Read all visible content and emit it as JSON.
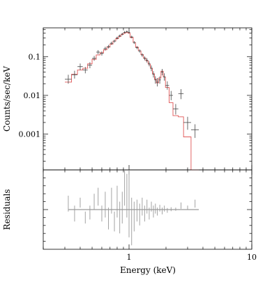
{
  "chart_data": [
    {
      "type": "line",
      "panel": "spectrum",
      "xlabel": "",
      "ylabel": "Counts/sec/keV",
      "x_scale": "log",
      "y_scale": "log",
      "xlim": [
        0.2,
        10
      ],
      "ylim": [
        0.00012,
        0.55
      ],
      "y_ticks": [
        {
          "value": 0.1,
          "label": "0.1"
        },
        {
          "value": 0.01,
          "label": "0.01"
        },
        {
          "value": 0.001,
          "label": "0.001"
        }
      ],
      "model_color": "#e05555",
      "data_color": "#444444",
      "data_points": [
        {
          "x": 0.32,
          "y": 0.026,
          "ylo": 0.02,
          "yhi": 0.034,
          "xlo": 0.3,
          "xhi": 0.34
        },
        {
          "x": 0.36,
          "y": 0.034,
          "ylo": 0.027,
          "yhi": 0.043,
          "xlo": 0.34,
          "xhi": 0.38
        },
        {
          "x": 0.4,
          "y": 0.055,
          "ylo": 0.045,
          "yhi": 0.066,
          "xlo": 0.38,
          "xhi": 0.42
        },
        {
          "x": 0.44,
          "y": 0.045,
          "ylo": 0.037,
          "yhi": 0.054,
          "xlo": 0.42,
          "xhi": 0.46
        },
        {
          "x": 0.48,
          "y": 0.06,
          "ylo": 0.05,
          "yhi": 0.072,
          "xlo": 0.46,
          "xhi": 0.5
        },
        {
          "x": 0.52,
          "y": 0.09,
          "ylo": 0.078,
          "yhi": 0.104,
          "xlo": 0.5,
          "xhi": 0.54
        },
        {
          "x": 0.56,
          "y": 0.13,
          "ylo": 0.115,
          "yhi": 0.147,
          "xlo": 0.54,
          "xhi": 0.58
        },
        {
          "x": 0.6,
          "y": 0.12,
          "ylo": 0.106,
          "yhi": 0.136,
          "xlo": 0.58,
          "xhi": 0.62
        },
        {
          "x": 0.64,
          "y": 0.16,
          "ylo": 0.143,
          "yhi": 0.178,
          "xlo": 0.62,
          "xhi": 0.66
        },
        {
          "x": 0.68,
          "y": 0.18,
          "ylo": 0.162,
          "yhi": 0.2,
          "xlo": 0.66,
          "xhi": 0.7
        },
        {
          "x": 0.72,
          "y": 0.22,
          "ylo": 0.2,
          "yhi": 0.242,
          "xlo": 0.7,
          "xhi": 0.74
        },
        {
          "x": 0.76,
          "y": 0.25,
          "ylo": 0.228,
          "yhi": 0.274,
          "xlo": 0.74,
          "xhi": 0.78
        },
        {
          "x": 0.8,
          "y": 0.3,
          "ylo": 0.276,
          "yhi": 0.326,
          "xlo": 0.78,
          "xhi": 0.82
        },
        {
          "x": 0.84,
          "y": 0.34,
          "ylo": 0.314,
          "yhi": 0.368,
          "xlo": 0.82,
          "xhi": 0.86
        },
        {
          "x": 0.88,
          "y": 0.38,
          "ylo": 0.352,
          "yhi": 0.41,
          "xlo": 0.86,
          "xhi": 0.9
        },
        {
          "x": 0.92,
          "y": 0.42,
          "ylo": 0.39,
          "yhi": 0.452,
          "xlo": 0.9,
          "xhi": 0.94
        },
        {
          "x": 0.96,
          "y": 0.44,
          "ylo": 0.41,
          "yhi": 0.472,
          "xlo": 0.94,
          "xhi": 0.98
        },
        {
          "x": 1.0,
          "y": 0.42,
          "ylo": 0.39,
          "yhi": 0.452,
          "xlo": 0.98,
          "xhi": 1.02
        },
        {
          "x": 1.05,
          "y": 0.32,
          "ylo": 0.296,
          "yhi": 0.346,
          "xlo": 1.02,
          "xhi": 1.08
        },
        {
          "x": 1.1,
          "y": 0.23,
          "ylo": 0.211,
          "yhi": 0.25,
          "xlo": 1.08,
          "xhi": 1.13
        },
        {
          "x": 1.16,
          "y": 0.17,
          "ylo": 0.155,
          "yhi": 0.186,
          "xlo": 1.13,
          "xhi": 1.19
        },
        {
          "x": 1.22,
          "y": 0.14,
          "ylo": 0.127,
          "yhi": 0.154,
          "xlo": 1.19,
          "xhi": 1.25
        },
        {
          "x": 1.28,
          "y": 0.11,
          "ylo": 0.099,
          "yhi": 0.122,
          "xlo": 1.25,
          "xhi": 1.31
        },
        {
          "x": 1.34,
          "y": 0.09,
          "ylo": 0.08,
          "yhi": 0.101,
          "xlo": 1.31,
          "xhi": 1.37
        },
        {
          "x": 1.4,
          "y": 0.08,
          "ylo": 0.07,
          "yhi": 0.091,
          "xlo": 1.37,
          "xhi": 1.43
        },
        {
          "x": 1.46,
          "y": 0.065,
          "ylo": 0.056,
          "yhi": 0.075,
          "xlo": 1.43,
          "xhi": 1.49
        },
        {
          "x": 1.52,
          "y": 0.05,
          "ylo": 0.042,
          "yhi": 0.059,
          "xlo": 1.49,
          "xhi": 1.55
        },
        {
          "x": 1.58,
          "y": 0.035,
          "ylo": 0.029,
          "yhi": 0.042,
          "xlo": 1.55,
          "xhi": 1.61
        },
        {
          "x": 1.64,
          "y": 0.025,
          "ylo": 0.02,
          "yhi": 0.031,
          "xlo": 1.61,
          "xhi": 1.67
        },
        {
          "x": 1.7,
          "y": 0.022,
          "ylo": 0.017,
          "yhi": 0.028,
          "xlo": 1.67,
          "xhi": 1.74
        },
        {
          "x": 1.78,
          "y": 0.025,
          "ylo": 0.02,
          "yhi": 0.031,
          "xlo": 1.74,
          "xhi": 1.82
        },
        {
          "x": 1.86,
          "y": 0.04,
          "ylo": 0.033,
          "yhi": 0.048,
          "xlo": 1.82,
          "xhi": 1.9
        },
        {
          "x": 1.94,
          "y": 0.03,
          "ylo": 0.024,
          "yhi": 0.037,
          "xlo": 1.9,
          "xhi": 1.98
        },
        {
          "x": 2.05,
          "y": 0.018,
          "ylo": 0.014,
          "yhi": 0.023,
          "xlo": 1.98,
          "xhi": 2.12
        },
        {
          "x": 2.2,
          "y": 0.01,
          "ylo": 0.0075,
          "yhi": 0.013,
          "xlo": 2.12,
          "xhi": 2.28
        },
        {
          "x": 2.4,
          "y": 0.0045,
          "ylo": 0.0032,
          "yhi": 0.006,
          "xlo": 2.28,
          "xhi": 2.52
        },
        {
          "x": 2.65,
          "y": 0.011,
          "ylo": 0.008,
          "yhi": 0.0145,
          "xlo": 2.52,
          "xhi": 2.78
        },
        {
          "x": 3.0,
          "y": 0.002,
          "ylo": 0.0013,
          "yhi": 0.0028,
          "xlo": 2.78,
          "xhi": 3.2
        },
        {
          "x": 3.45,
          "y": 0.0013,
          "ylo": 0.0008,
          "yhi": 0.0018,
          "xlo": 3.2,
          "xhi": 3.7
        }
      ],
      "model_steps": [
        {
          "x0": 0.3,
          "x1": 0.34,
          "y": 0.022
        },
        {
          "x0": 0.34,
          "x1": 0.38,
          "y": 0.035
        },
        {
          "x0": 0.38,
          "x1": 0.42,
          "y": 0.045
        },
        {
          "x0": 0.42,
          "x1": 0.46,
          "y": 0.05
        },
        {
          "x0": 0.46,
          "x1": 0.5,
          "y": 0.065
        },
        {
          "x0": 0.5,
          "x1": 0.54,
          "y": 0.085
        },
        {
          "x0": 0.54,
          "x1": 0.58,
          "y": 0.11
        },
        {
          "x0": 0.58,
          "x1": 0.62,
          "y": 0.125
        },
        {
          "x0": 0.62,
          "x1": 0.66,
          "y": 0.15
        },
        {
          "x0": 0.66,
          "x1": 0.7,
          "y": 0.175
        },
        {
          "x0": 0.7,
          "x1": 0.74,
          "y": 0.21
        },
        {
          "x0": 0.74,
          "x1": 0.78,
          "y": 0.25
        },
        {
          "x0": 0.78,
          "x1": 0.82,
          "y": 0.29
        },
        {
          "x0": 0.82,
          "x1": 0.86,
          "y": 0.33
        },
        {
          "x0": 0.86,
          "x1": 0.9,
          "y": 0.37
        },
        {
          "x0": 0.9,
          "x1": 0.94,
          "y": 0.4
        },
        {
          "x0": 0.94,
          "x1": 0.98,
          "y": 0.42
        },
        {
          "x0": 0.98,
          "x1": 1.02,
          "y": 0.4
        },
        {
          "x0": 1.02,
          "x1": 1.08,
          "y": 0.31
        },
        {
          "x0": 1.08,
          "x1": 1.13,
          "y": 0.23
        },
        {
          "x0": 1.13,
          "x1": 1.19,
          "y": 0.175
        },
        {
          "x0": 1.19,
          "x1": 1.25,
          "y": 0.14
        },
        {
          "x0": 1.25,
          "x1": 1.31,
          "y": 0.112
        },
        {
          "x0": 1.31,
          "x1": 1.37,
          "y": 0.092
        },
        {
          "x0": 1.37,
          "x1": 1.43,
          "y": 0.078
        },
        {
          "x0": 1.43,
          "x1": 1.49,
          "y": 0.064
        },
        {
          "x0": 1.49,
          "x1": 1.55,
          "y": 0.05
        },
        {
          "x0": 1.55,
          "x1": 1.61,
          "y": 0.036
        },
        {
          "x0": 1.61,
          "x1": 1.67,
          "y": 0.026
        },
        {
          "x0": 1.67,
          "x1": 1.74,
          "y": 0.021
        },
        {
          "x0": 1.74,
          "x1": 1.82,
          "y": 0.028
        },
        {
          "x0": 1.82,
          "x1": 1.9,
          "y": 0.042
        },
        {
          "x0": 1.9,
          "x1": 1.98,
          "y": 0.03
        },
        {
          "x0": 1.98,
          "x1": 2.12,
          "y": 0.016
        },
        {
          "x0": 2.12,
          "x1": 2.28,
          "y": 0.0065
        },
        {
          "x0": 2.28,
          "x1": 2.52,
          "y": 0.003
        },
        {
          "x0": 2.52,
          "x1": 2.78,
          "y": 0.0028
        },
        {
          "x0": 2.78,
          "x1": 3.2,
          "y": 0.00085
        },
        {
          "x0": 3.2,
          "x1": 3.7,
          "y": 0.00012
        }
      ]
    },
    {
      "type": "scatter",
      "panel": "residuals",
      "xlabel": "Energy (keV)",
      "ylabel": "Residuals",
      "x_scale": "log",
      "xlim": [
        0.2,
        10
      ],
      "ylim": [
        -1.0,
        1.0
      ],
      "x_ticks": [
        {
          "value": 1,
          "label": "1"
        },
        {
          "value": 10,
          "label": "10"
        }
      ],
      "zero_line": {
        "x0": 0.32,
        "x1": 3.7,
        "y": 0
      },
      "residual_color": "#999999",
      "residuals": [
        {
          "x": 0.32,
          "ylo": -0.05,
          "yhi": 0.35
        },
        {
          "x": 0.36,
          "ylo": -0.3,
          "yhi": 0.1
        },
        {
          "x": 0.4,
          "ylo": 0.05,
          "yhi": 0.3
        },
        {
          "x": 0.44,
          "ylo": -0.35,
          "yhi": -0.05
        },
        {
          "x": 0.48,
          "ylo": -0.25,
          "yhi": 0.1
        },
        {
          "x": 0.52,
          "ylo": 0.0,
          "yhi": 0.4
        },
        {
          "x": 0.56,
          "ylo": 0.1,
          "yhi": 0.55
        },
        {
          "x": 0.6,
          "ylo": -0.3,
          "yhi": 0.1
        },
        {
          "x": 0.64,
          "ylo": -0.2,
          "yhi": 0.45
        },
        {
          "x": 0.68,
          "ylo": -0.5,
          "yhi": 0.05
        },
        {
          "x": 0.72,
          "ylo": -0.1,
          "yhi": 0.55
        },
        {
          "x": 0.76,
          "ylo": -0.55,
          "yhi": -0.05
        },
        {
          "x": 0.8,
          "ylo": -0.2,
          "yhi": 0.6
        },
        {
          "x": 0.84,
          "ylo": -0.6,
          "yhi": 0.2
        },
        {
          "x": 0.88,
          "ylo": -0.35,
          "yhi": 0.45
        },
        {
          "x": 0.92,
          "ylo": 0.1,
          "yhi": 1.0
        },
        {
          "x": 0.96,
          "ylo": -0.2,
          "yhi": 0.9
        },
        {
          "x": 1.0,
          "ylo": -0.7,
          "yhi": 1.0
        },
        {
          "x": 1.05,
          "ylo": -0.9,
          "yhi": 0.3
        },
        {
          "x": 1.1,
          "ylo": -0.55,
          "yhi": 0.2
        },
        {
          "x": 1.16,
          "ylo": -0.3,
          "yhi": 0.25
        },
        {
          "x": 1.22,
          "ylo": -0.4,
          "yhi": 0.15
        },
        {
          "x": 1.28,
          "ylo": -0.15,
          "yhi": 0.3
        },
        {
          "x": 1.34,
          "ylo": -0.3,
          "yhi": 0.1
        },
        {
          "x": 1.4,
          "ylo": -0.1,
          "yhi": 0.25
        },
        {
          "x": 1.46,
          "ylo": -0.25,
          "yhi": 0.05
        },
        {
          "x": 1.52,
          "ylo": -0.05,
          "yhi": 0.2
        },
        {
          "x": 1.58,
          "ylo": -0.2,
          "yhi": 0.1
        },
        {
          "x": 1.64,
          "ylo": -0.1,
          "yhi": 0.15
        },
        {
          "x": 1.7,
          "ylo": -0.15,
          "yhi": 0.05
        },
        {
          "x": 1.78,
          "ylo": -0.05,
          "yhi": 0.12
        },
        {
          "x": 1.86,
          "ylo": -0.12,
          "yhi": 0.05
        },
        {
          "x": 1.94,
          "ylo": -0.05,
          "yhi": 0.1
        },
        {
          "x": 2.05,
          "ylo": -0.08,
          "yhi": 0.04
        },
        {
          "x": 2.2,
          "ylo": -0.04,
          "yhi": 0.06
        },
        {
          "x": 2.4,
          "ylo": -0.03,
          "yhi": 0.05
        },
        {
          "x": 2.65,
          "ylo": 0.02,
          "yhi": 0.18
        },
        {
          "x": 3.0,
          "ylo": 0.0,
          "yhi": 0.1
        },
        {
          "x": 3.45,
          "ylo": 0.05,
          "yhi": 0.25
        }
      ]
    }
  ]
}
